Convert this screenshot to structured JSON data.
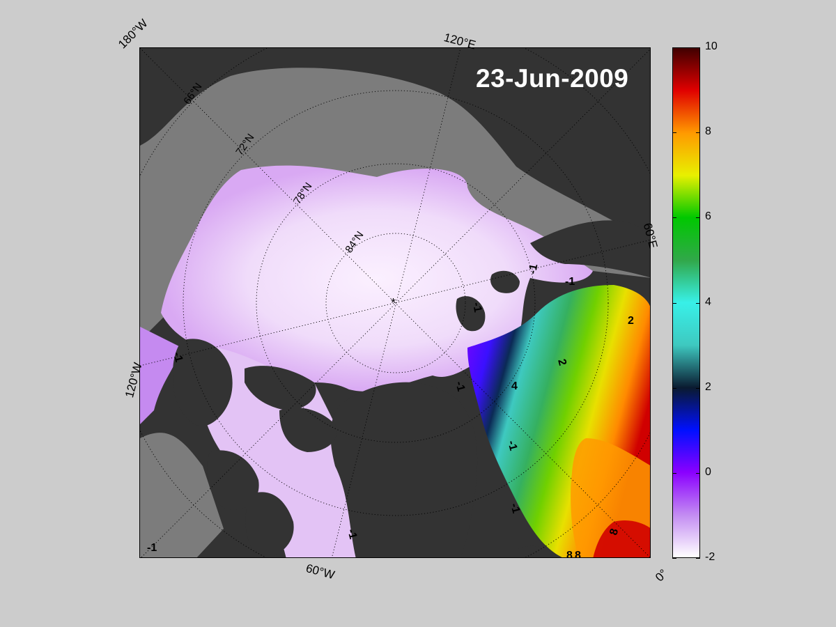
{
  "date": "23-Jun-2009",
  "edge_labels": {
    "lon_180w": "180°W",
    "lon_120e": "120°E",
    "lon_60e": "60°E",
    "lon_120w": "120°W",
    "lon_60w": "60°W",
    "lon_0": "0°"
  },
  "lat_labels": [
    "66°N",
    "72°N",
    "78°N",
    "84°N"
  ],
  "contour_labels": [
    "-1",
    "-1",
    "-1",
    "-1",
    "-1",
    "-1",
    "-1",
    "-1",
    "-1",
    "2",
    "2",
    "4",
    "8",
    "8",
    "8"
  ],
  "colorbar": {
    "ticks": [
      "10",
      "8",
      "6",
      "4",
      "2",
      "0",
      "-2"
    ],
    "range": [
      -2,
      10
    ],
    "colors": [
      "#ffffff",
      "#c38cf2",
      "#8a00ff",
      "#0010ff",
      "#0a1a30",
      "#3ec9c0",
      "#38f0e8",
      "#31a84a",
      "#00c800",
      "#e8f000",
      "#ff9a00",
      "#e00000",
      "#400000"
    ]
  },
  "colors": {
    "land": "#333333",
    "no_data": "#7c7c7c",
    "ice": "#e9d0f7",
    "background": "#cccccc"
  }
}
